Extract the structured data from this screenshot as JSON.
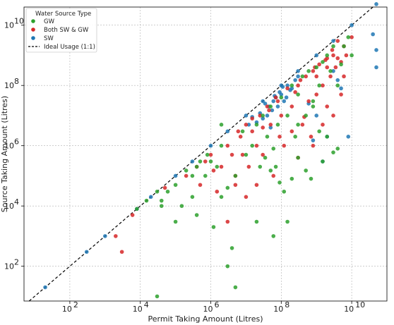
{
  "chart_data": {
    "type": "scatter",
    "xscale": "log",
    "yscale": "log",
    "xlabel": "Permit Taking Amount (Litres)",
    "ylabel": "Source Taking Amount (Litres)",
    "xlim": [
      5,
      100000000000.0
    ],
    "ylim": [
      7,
      40000000000.0
    ],
    "x_ticks": [
      {
        "v": 100,
        "base": "10",
        "exp": "2"
      },
      {
        "v": 10000,
        "base": "10",
        "exp": "4"
      },
      {
        "v": 1000000,
        "base": "10",
        "exp": "6"
      },
      {
        "v": 100000000,
        "base": "10",
        "exp": "8"
      },
      {
        "v": 10000000000,
        "base": "10",
        "exp": "10"
      }
    ],
    "y_ticks": [
      {
        "v": 100,
        "base": "10",
        "exp": "2"
      },
      {
        "v": 10000,
        "base": "10",
        "exp": "4"
      },
      {
        "v": 1000000,
        "base": "10",
        "exp": "6"
      },
      {
        "v": 100000000,
        "base": "10",
        "exp": "8"
      },
      {
        "v": 10000000000,
        "base": "10",
        "exp": "10"
      }
    ],
    "grid": true,
    "legend": {
      "title": "Water Source Type",
      "placement": "top-left",
      "entries": [
        {
          "label": "GW",
          "color": "#2ca02c",
          "kind": "marker"
        },
        {
          "label": "Both SW & GW",
          "color": "#d62728",
          "kind": "marker"
        },
        {
          "label": "SW",
          "color": "#1f77b4",
          "kind": "marker"
        },
        {
          "label": "Ideal Usage (1:1)",
          "color": "#000000",
          "kind": "dashed-line"
        }
      ]
    },
    "reference_line": {
      "name": "Ideal Usage (1:1)",
      "slope": 1,
      "style": "dashed",
      "color": "#000000"
    },
    "series": [
      {
        "name": "SW",
        "color": "#1f77b4",
        "points": [
          [
            20,
            20
          ],
          [
            300,
            300
          ],
          [
            1000,
            1000
          ],
          [
            8000,
            8000
          ],
          [
            20000,
            20000
          ],
          [
            100000,
            100000
          ],
          [
            300000,
            300000
          ],
          [
            1000000,
            1000000
          ],
          [
            3000000,
            3000000
          ],
          [
            10000000,
            10000000
          ],
          [
            30000000,
            30000000
          ],
          [
            100000000,
            100000000
          ],
          [
            300000000,
            300000000
          ],
          [
            1000000000,
            1000000000
          ],
          [
            3000000000,
            3000000000
          ],
          [
            10000000000,
            10000000000
          ],
          [
            50000000000,
            50000000000
          ],
          [
            80000000000,
            80000000000
          ],
          [
            20000000,
            6000000
          ],
          [
            40000000,
            10000000
          ],
          [
            60000000,
            30000000
          ],
          [
            100000000,
            50000000
          ],
          [
            200000000,
            80000000
          ],
          [
            50000000,
            4000000
          ],
          [
            80000000,
            20000000
          ],
          [
            150000000,
            100000000
          ],
          [
            300000000,
            200000000
          ],
          [
            30000000,
            8000000
          ],
          [
            70000000,
            40000000
          ],
          [
            120000000,
            30000000
          ],
          [
            25000000,
            12000000
          ],
          [
            45000000,
            20000000
          ],
          [
            90000000,
            60000000
          ],
          [
            180000000,
            70000000
          ],
          [
            15000000,
            9000000
          ],
          [
            35000000,
            25000000
          ],
          [
            55000000,
            15000000
          ],
          [
            110000000,
            90000000
          ],
          [
            250000000,
            150000000
          ],
          [
            12000000,
            5000000
          ],
          [
            65000000,
            45000000
          ],
          [
            140000000,
            40000000
          ],
          [
            3000000000,
            300000000
          ],
          [
            4000000000,
            150000000
          ],
          [
            5000000000,
            80000000
          ],
          [
            8000000000,
            2000000
          ],
          [
            1500000000,
            300000
          ],
          [
            50000000000,
            400000000
          ],
          [
            50000000000,
            1500000000
          ],
          [
            40000000000,
            5000000000
          ],
          [
            600000000,
            25000000
          ],
          [
            800000000,
            1500000
          ],
          [
            2000000000,
            2000000
          ],
          [
            1000000000,
            10000000
          ]
        ]
      },
      {
        "name": "Both SW & GW",
        "color": "#d62728",
        "points": [
          [
            2000,
            1000
          ],
          [
            3000,
            300
          ],
          [
            6000,
            5000
          ],
          [
            50000,
            40000
          ],
          [
            200000,
            100000
          ],
          [
            500000,
            50000
          ],
          [
            1000000,
            500000
          ],
          [
            1500000,
            30000
          ],
          [
            2000000,
            200000
          ],
          [
            3000000,
            1000000
          ],
          [
            4000000,
            500000
          ],
          [
            5000000,
            50000
          ],
          [
            7000000,
            2000000
          ],
          [
            10000000,
            5000000
          ],
          [
            12000000,
            200000
          ],
          [
            15000000,
            3000000
          ],
          [
            20000000,
            1000000
          ],
          [
            25000000,
            10000000
          ],
          [
            30000000,
            500000
          ],
          [
            40000000,
            20000000
          ],
          [
            50000000,
            5000000
          ],
          [
            60000000,
            100000
          ],
          [
            80000000,
            30000000
          ],
          [
            100000000,
            10000000
          ],
          [
            120000000,
            1000000
          ],
          [
            150000000,
            80000000
          ],
          [
            200000000,
            20000000
          ],
          [
            300000000,
            100000000
          ],
          [
            400000000,
            5000000
          ],
          [
            500000000,
            200000000
          ],
          [
            600000000,
            30000000
          ],
          [
            800000000,
            300000000
          ],
          [
            1000000000,
            50000000
          ],
          [
            1200000000,
            500000000
          ],
          [
            1500000000,
            100000000
          ],
          [
            2000000000,
            800000000
          ],
          [
            2500000000,
            200000000
          ],
          [
            3000000000,
            1000000000
          ],
          [
            4000000000,
            3000000000
          ],
          [
            5000000000,
            600000000
          ],
          [
            6000000000,
            2000000000
          ],
          [
            2000000000,
            20000000
          ],
          [
            1500000000,
            5000000
          ],
          [
            3000000000,
            10000000
          ],
          [
            5000000000,
            50000000
          ],
          [
            700000000,
            2000000
          ],
          [
            300000000,
            400000
          ],
          [
            200000000,
            3000000
          ],
          [
            800000000,
            1000000
          ],
          [
            1000000000,
            200000000
          ],
          [
            2000000000,
            400000000
          ],
          [
            4000000000,
            800000000
          ],
          [
            6000000000,
            200000000
          ],
          [
            10000000000,
            4000000000
          ],
          [
            5000000,
            100000
          ],
          [
            3000000,
            3000
          ],
          [
            10000000,
            20000
          ],
          [
            8000000,
            500000
          ],
          [
            20000000,
            50000
          ],
          [
            30000000,
            4000000
          ],
          [
            45000000,
            15000000
          ],
          [
            70000000,
            40000000
          ],
          [
            90000000,
            2000000
          ],
          [
            250000000,
            60000000
          ],
          [
            350000000,
            150000000
          ],
          [
            450000000,
            9000000
          ],
          [
            900000000,
            400000000
          ],
          [
            1800000000,
            700000000
          ],
          [
            2800000000,
            1500000000
          ],
          [
            3500000000,
            400000000
          ],
          [
            7000000000,
            1000000000
          ],
          [
            15000000,
            8000000
          ],
          [
            6000000,
            3000000
          ],
          [
            700000,
            300000
          ],
          [
            1200000,
            150000
          ],
          [
            400000,
            200000
          ]
        ]
      },
      {
        "name": "GW",
        "color": "#2ca02c",
        "points": [
          [
            8000,
            8000
          ],
          [
            15000,
            15000
          ],
          [
            30000,
            30000
          ],
          [
            40000,
            10000
          ],
          [
            60000,
            30000
          ],
          [
            100000,
            50000
          ],
          [
            200000,
            150000
          ],
          [
            300000,
            100000
          ],
          [
            400000,
            200000
          ],
          [
            500000,
            300000
          ],
          [
            700000,
            100000
          ],
          [
            800000,
            500000
          ],
          [
            1000000,
            300000
          ],
          [
            1200000,
            2000
          ],
          [
            1500000,
            200000
          ],
          [
            2000000,
            1000000
          ],
          [
            3000000,
            100
          ],
          [
            4000000,
            400
          ],
          [
            5000000,
            20
          ],
          [
            2000000,
            20000
          ],
          [
            3000000,
            40000
          ],
          [
            5000000,
            100000
          ],
          [
            8000000,
            3000000
          ],
          [
            10000000,
            500000
          ],
          [
            15000000,
            1000000
          ],
          [
            20000000,
            5000000
          ],
          [
            25000000,
            200000
          ],
          [
            30000000,
            10000000
          ],
          [
            40000000,
            2000000
          ],
          [
            50000000,
            20000000
          ],
          [
            60000000,
            1000
          ],
          [
            80000000,
            5000000
          ],
          [
            100000000,
            40000000
          ],
          [
            150000000,
            10000000
          ],
          [
            200000000,
            100000000
          ],
          [
            250000000,
            2000000
          ],
          [
            300000000,
            50000000
          ],
          [
            400000000,
            200000000
          ],
          [
            500000000,
            10000000
          ],
          [
            600000000,
            300000000
          ],
          [
            800000000,
            30000000
          ],
          [
            1000000000,
            400000000
          ],
          [
            1200000000,
            100000000
          ],
          [
            1500000000,
            600000000
          ],
          [
            2000000000,
            1000000000
          ],
          [
            2500000000,
            300000000
          ],
          [
            3000000000,
            2000000000
          ],
          [
            4000000000,
            100000000
          ],
          [
            5000000000,
            500000000
          ],
          [
            6000000000,
            2000000000
          ],
          [
            8000000000,
            4000000000
          ],
          [
            10000000000,
            1000000000
          ],
          [
            2000000000,
            2000000
          ],
          [
            3000000000,
            600000
          ],
          [
            4000000000,
            800000
          ],
          [
            1500000000,
            300000
          ],
          [
            500000000,
            150000
          ],
          [
            700000000,
            80000
          ],
          [
            300000000,
            400000
          ],
          [
            200000000,
            80000
          ],
          [
            150000000,
            3000
          ],
          [
            120000000,
            30000
          ],
          [
            90000000,
            60000
          ],
          [
            70000000,
            200000
          ],
          [
            50000000,
            150000
          ],
          [
            35000000,
            400000
          ],
          [
            60000000,
            800000
          ],
          [
            400000,
            5000
          ],
          [
            300000,
            20000
          ],
          [
            150000,
            10000
          ],
          [
            100000,
            3000
          ],
          [
            40000,
            15000
          ],
          [
            20000000,
            3000
          ],
          [
            300000000,
            5000000
          ],
          [
            800000000,
            20000000
          ],
          [
            1200000000,
            3000000
          ],
          [
            30000,
            10
          ],
          [
            2000000,
            5000000
          ]
        ]
      }
    ]
  }
}
